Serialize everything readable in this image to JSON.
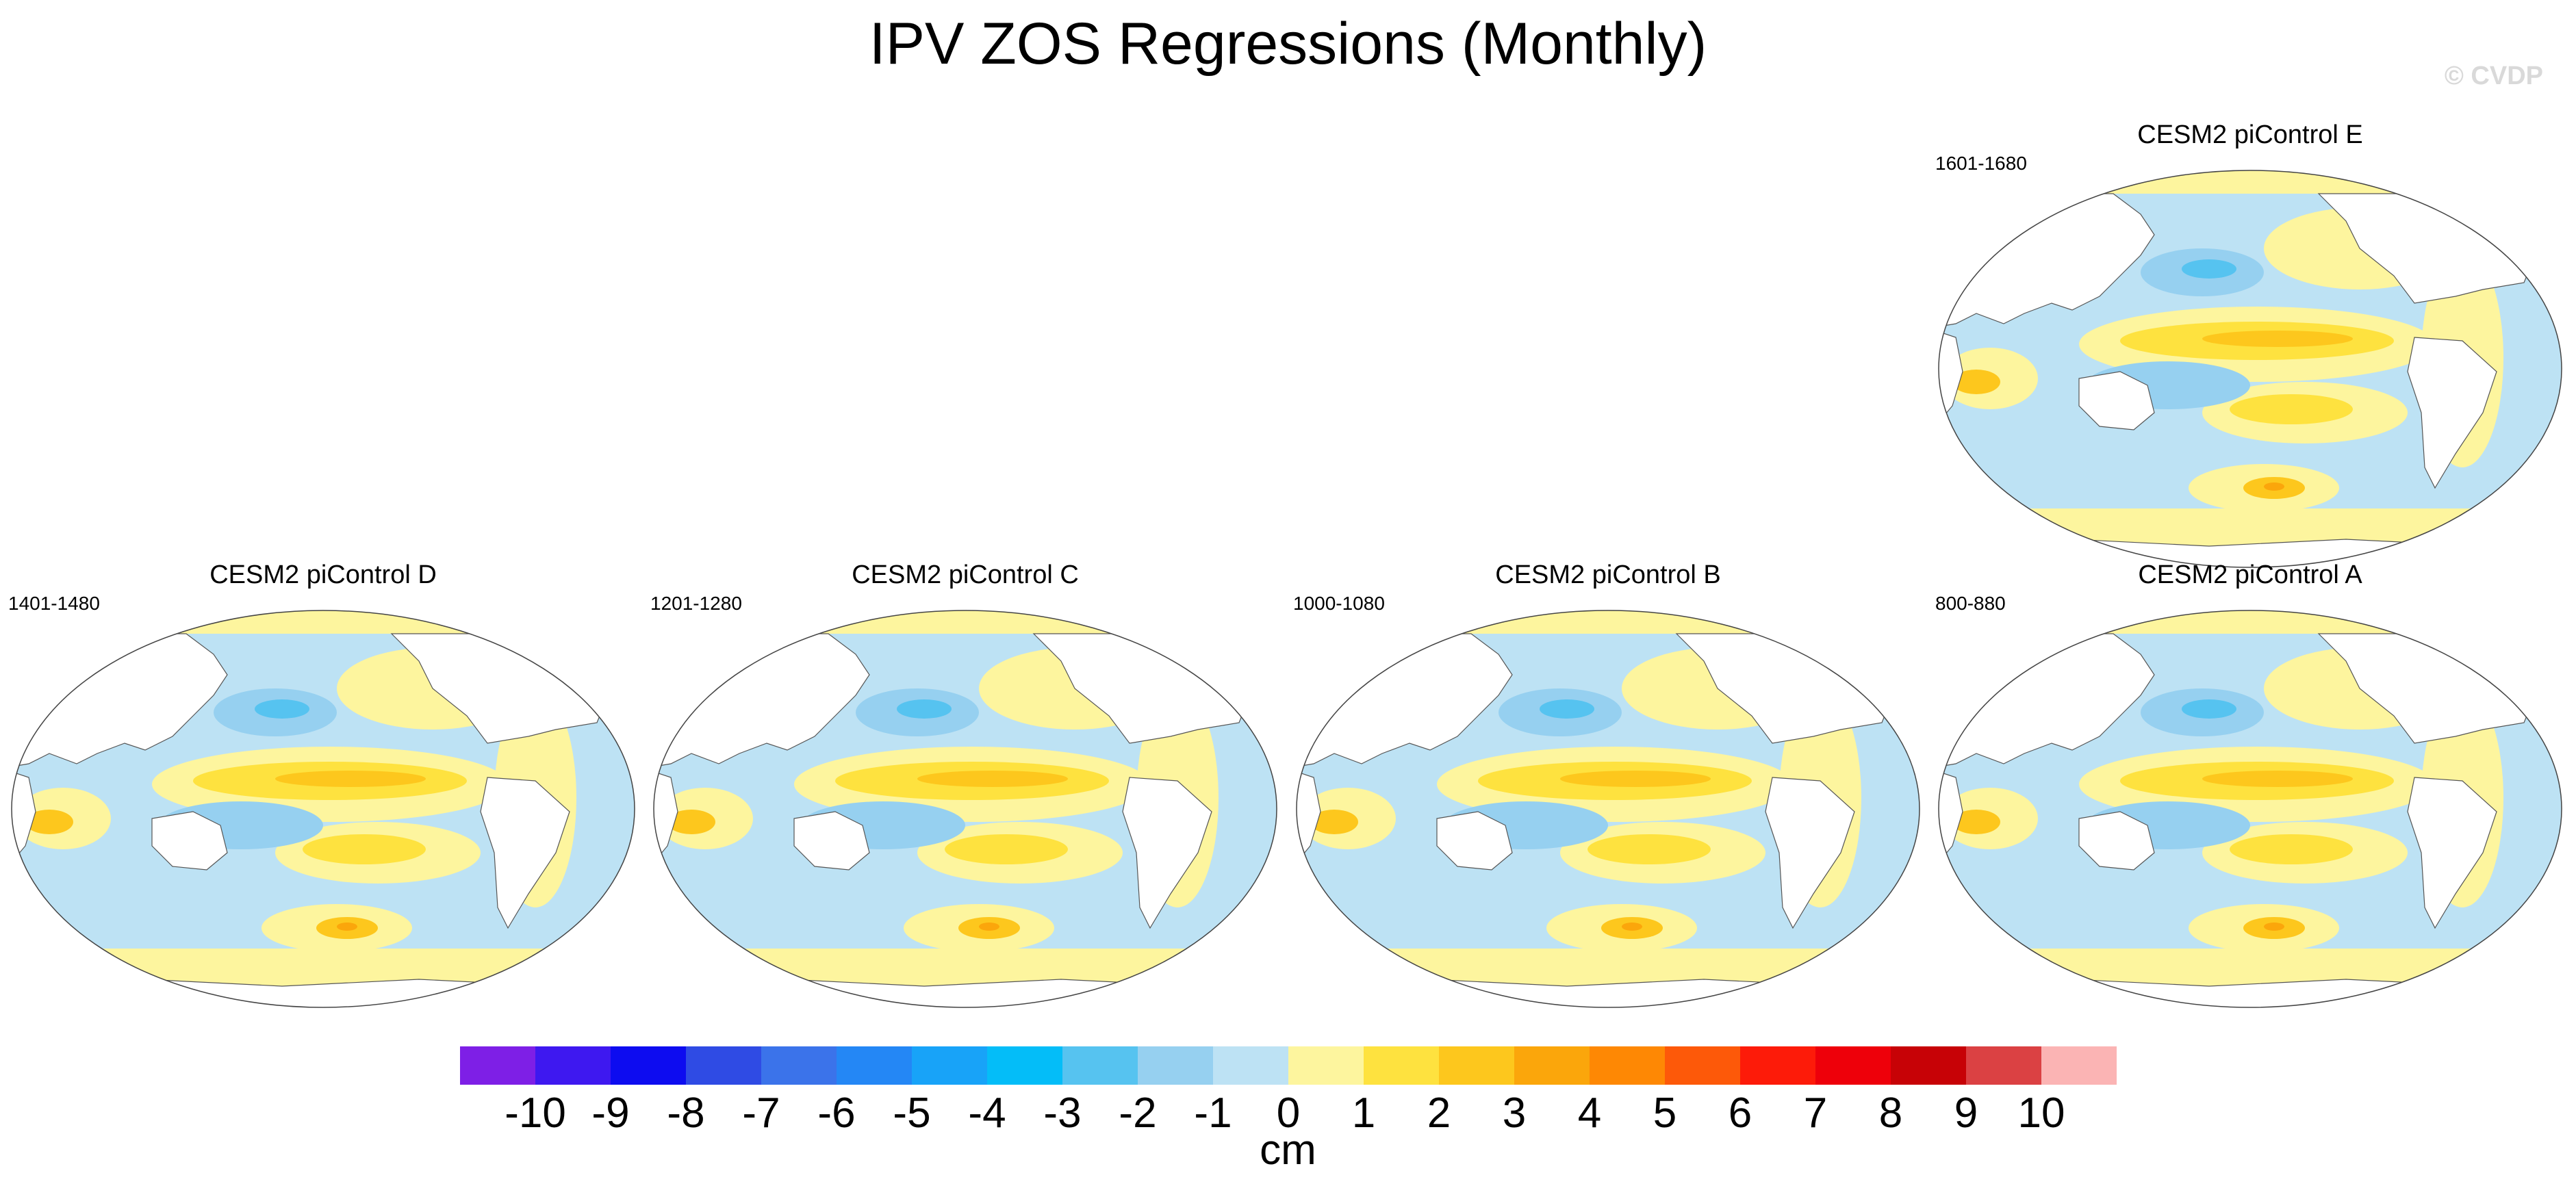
{
  "title": "IPV ZOS Regressions (Monthly)",
  "credit": "© CVDP",
  "panels": [
    {
      "id": "E",
      "title": "CESM2 piControl E",
      "years": "1601-1680"
    },
    {
      "id": "D",
      "title": "CESM2 piControl D",
      "years": "1401-1480"
    },
    {
      "id": "C",
      "title": "CESM2 piControl C",
      "years": "1201-1280"
    },
    {
      "id": "B",
      "title": "CESM2 piControl B",
      "years": "1000-1080"
    },
    {
      "id": "A",
      "title": "CESM2 piControl A",
      "years": "800-880"
    }
  ],
  "colorbar": {
    "colors": [
      "#7e1fe6",
      "#3e18f0",
      "#0d0cf0",
      "#2f4be4",
      "#3b73ea",
      "#2487f5",
      "#18a3f8",
      "#04bdf8",
      "#56c3f0",
      "#96d0f0",
      "#bde2f4",
      "#fdf59e",
      "#fee23f",
      "#fdc71d",
      "#fba60b",
      "#fe8804",
      "#fd5909",
      "#fd1b09",
      "#ee000a",
      "#c70206",
      "#db4143",
      "#fbb4b4"
    ],
    "labels": [
      "-10",
      "-9",
      "-8",
      "-7",
      "-6",
      "-5",
      "-4",
      "-3",
      "-2",
      "-1",
      "0",
      "1",
      "2",
      "3",
      "4",
      "5",
      "6",
      "7",
      "8",
      "9",
      "10"
    ],
    "units": "cm"
  }
}
